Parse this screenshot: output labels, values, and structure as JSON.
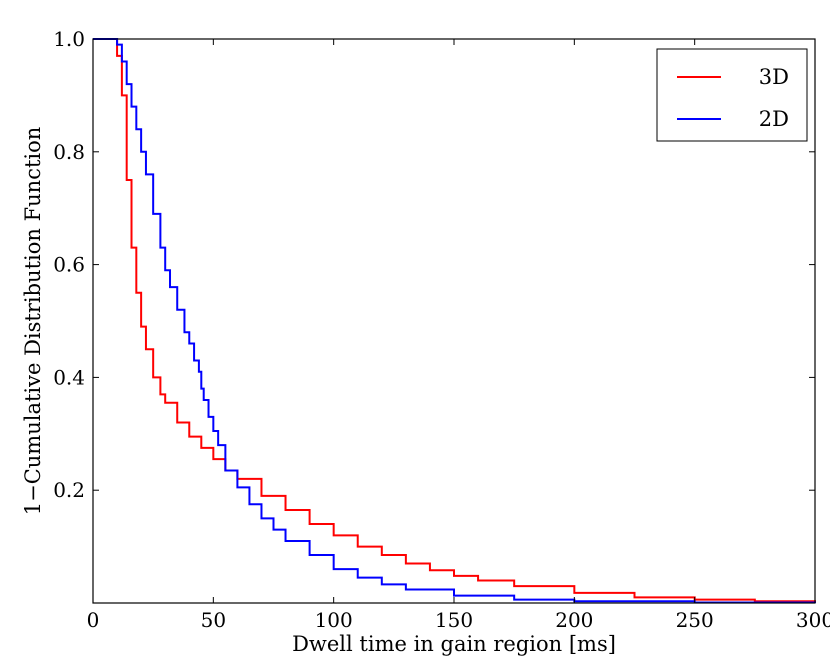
{
  "chart_data": {
    "type": "line",
    "xlabel": "Dwell time in gain region [ms]",
    "ylabel": "1−Cumulative Distribution Function",
    "xlim": [
      0,
      300
    ],
    "ylim": [
      0,
      1.0
    ],
    "xticks": [
      0,
      50,
      100,
      150,
      200,
      250,
      300
    ],
    "xtick_labels": [
      "0",
      "50",
      "100",
      "150",
      "200",
      "250",
      "300"
    ],
    "yticks": [
      0.2,
      0.4,
      0.6,
      0.8,
      1.0
    ],
    "ytick_labels": [
      "0.2",
      "0.4",
      "0.6",
      "0.8",
      "1.0"
    ],
    "grid": false,
    "legend_position": "top-right",
    "step": true,
    "series": [
      {
        "name": "3D",
        "color": "#ff0000",
        "x": [
          0,
          8,
          10,
          12,
          14,
          16,
          18,
          20,
          22,
          25,
          28,
          30,
          35,
          40,
          45,
          50,
          55,
          60,
          70,
          80,
          90,
          100,
          110,
          120,
          130,
          140,
          150,
          160,
          175,
          200,
          225,
          250,
          275,
          300
        ],
        "y": [
          1.0,
          1.0,
          0.97,
          0.9,
          0.75,
          0.63,
          0.55,
          0.49,
          0.45,
          0.4,
          0.37,
          0.355,
          0.32,
          0.295,
          0.275,
          0.255,
          0.235,
          0.22,
          0.19,
          0.165,
          0.14,
          0.12,
          0.1,
          0.085,
          0.07,
          0.058,
          0.048,
          0.04,
          0.03,
          0.018,
          0.01,
          0.006,
          0.003,
          0.0
        ]
      },
      {
        "name": "2D",
        "color": "#0000ff",
        "x": [
          0,
          8,
          10,
          12,
          14,
          16,
          18,
          20,
          22,
          25,
          28,
          30,
          32,
          35,
          38,
          40,
          42,
          44,
          45,
          46,
          48,
          50,
          52,
          55,
          60,
          65,
          70,
          75,
          80,
          90,
          100,
          110,
          120,
          130,
          150,
          175,
          200,
          250,
          300
        ],
        "y": [
          1.0,
          1.0,
          0.99,
          0.96,
          0.92,
          0.88,
          0.84,
          0.8,
          0.76,
          0.69,
          0.63,
          0.59,
          0.56,
          0.52,
          0.48,
          0.46,
          0.43,
          0.41,
          0.38,
          0.36,
          0.33,
          0.305,
          0.28,
          0.235,
          0.205,
          0.175,
          0.15,
          0.13,
          0.11,
          0.085,
          0.06,
          0.045,
          0.033,
          0.024,
          0.013,
          0.006,
          0.003,
          0.001,
          0.0
        ]
      }
    ]
  }
}
